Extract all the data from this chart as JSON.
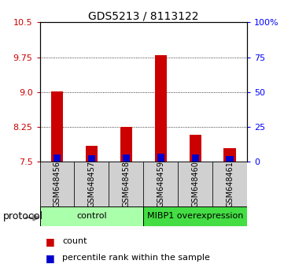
{
  "title": "GDS5213 / 8113122",
  "samples": [
    "GSM648456",
    "GSM648457",
    "GSM648458",
    "GSM648459",
    "GSM648460",
    "GSM648461"
  ],
  "red_values": [
    9.02,
    7.85,
    8.25,
    9.79,
    8.08,
    7.8
  ],
  "blue_values": [
    7.66,
    7.64,
    7.65,
    7.67,
    7.65,
    7.62
  ],
  "base": 7.5,
  "ylim_left": [
    7.5,
    10.5
  ],
  "ylim_right": [
    0,
    100
  ],
  "left_ticks": [
    7.5,
    8.25,
    9.0,
    9.75,
    10.5
  ],
  "right_ticks": [
    0,
    25,
    50,
    75,
    100
  ],
  "right_tick_labels": [
    "0",
    "25",
    "50",
    "75",
    "100%"
  ],
  "gridlines": [
    9.75,
    9.0,
    8.25
  ],
  "bar_width": 0.35,
  "red_color": "#cc0000",
  "blue_color": "#0000cc",
  "protocol_groups": [
    {
      "label": "control",
      "samples": [
        0,
        1,
        2
      ],
      "color": "#aaffaa"
    },
    {
      "label": "MIBP1 overexpression",
      "samples": [
        3,
        4,
        5
      ],
      "color": "#44dd44"
    }
  ],
  "protocol_label": "protocol",
  "legend_items": [
    {
      "color": "#cc0000",
      "label": "count"
    },
    {
      "color": "#0000cc",
      "label": "percentile rank within the sample"
    }
  ]
}
